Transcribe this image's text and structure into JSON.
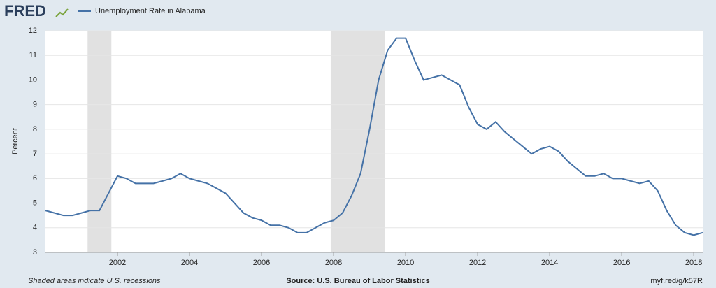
{
  "logo": "FRED",
  "chart_data": {
    "type": "line",
    "y_label": "Percent",
    "footer_left": "Shaded areas indicate U.S. recessions",
    "footer_center": "Source: U.S. Bureau of Labor Statistics",
    "footer_right": "myf.red/g/k57R",
    "x": [
      2000,
      2000.25,
      2000.5,
      2000.75,
      2001,
      2001.25,
      2001.5,
      2001.75,
      2002,
      2002.25,
      2002.5,
      2002.75,
      2003,
      2003.25,
      2003.5,
      2003.75,
      2004,
      2004.25,
      2004.5,
      2004.75,
      2005,
      2005.25,
      2005.5,
      2005.75,
      2006,
      2006.25,
      2006.5,
      2006.75,
      2007,
      2007.25,
      2007.5,
      2007.75,
      2008,
      2008.25,
      2008.5,
      2008.75,
      2009,
      2009.25,
      2009.5,
      2009.75,
      2010,
      2010.25,
      2010.5,
      2010.75,
      2011,
      2011.25,
      2011.5,
      2011.75,
      2012,
      2012.25,
      2012.5,
      2012.75,
      2013,
      2013.25,
      2013.5,
      2013.75,
      2014,
      2014.25,
      2014.5,
      2014.75,
      2015,
      2015.25,
      2015.5,
      2015.75,
      2016,
      2016.25,
      2016.5,
      2016.75,
      2017,
      2017.25,
      2017.5,
      2017.75,
      2018,
      2018.25
    ],
    "series": [
      {
        "name": "Unemployment Rate in Alabama",
        "color": "#4572a7",
        "values": [
          4.7,
          4.6,
          4.5,
          4.5,
          4.6,
          4.7,
          4.7,
          5.4,
          6.1,
          6.0,
          5.8,
          5.8,
          5.8,
          5.9,
          6.0,
          6.2,
          6.0,
          5.9,
          5.8,
          5.6,
          5.4,
          5.0,
          4.6,
          4.4,
          4.3,
          4.1,
          4.1,
          4.0,
          3.8,
          3.8,
          4.0,
          4.2,
          4.3,
          4.6,
          5.3,
          6.2,
          8.0,
          10.0,
          11.2,
          11.7,
          11.7,
          10.8,
          10.0,
          10.1,
          10.2,
          10.0,
          9.8,
          8.9,
          8.2,
          8.0,
          8.3,
          7.9,
          7.6,
          7.3,
          7.0,
          7.2,
          7.3,
          7.1,
          6.7,
          6.4,
          6.1,
          6.1,
          6.2,
          6.0,
          6.0,
          5.9,
          5.8,
          5.9,
          5.5,
          4.7,
          4.1,
          3.8,
          3.7,
          3.8
        ]
      }
    ],
    "recessions": [
      [
        2001.17,
        2001.83
      ],
      [
        2007.92,
        2009.42
      ]
    ],
    "recession_color": "#e1e1e1",
    "xlim": [
      2000,
      2018.25
    ],
    "xticks": [
      2002,
      2004,
      2006,
      2008,
      2010,
      2012,
      2014,
      2016,
      2018
    ],
    "ylim": [
      3,
      12
    ],
    "yticks": [
      3,
      4,
      5,
      6,
      7,
      8,
      9,
      10,
      11,
      12
    ],
    "grid": true
  }
}
